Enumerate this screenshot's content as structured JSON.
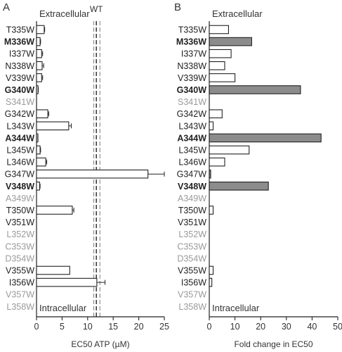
{
  "figure": {
    "mutations": [
      {
        "label": "T335W",
        "style": "normal"
      },
      {
        "label": "M336W",
        "style": "bold"
      },
      {
        "label": "I337W",
        "style": "normal"
      },
      {
        "label": "N338W",
        "style": "normal"
      },
      {
        "label": "V339W",
        "style": "normal"
      },
      {
        "label": "G340W",
        "style": "bold"
      },
      {
        "label": "S341W",
        "style": "gray"
      },
      {
        "label": "G342W",
        "style": "normal"
      },
      {
        "label": "L343W",
        "style": "normal"
      },
      {
        "label": "A344W",
        "style": "bold"
      },
      {
        "label": "L345W",
        "style": "normal"
      },
      {
        "label": "L346W",
        "style": "normal"
      },
      {
        "label": "G347W",
        "style": "normal"
      },
      {
        "label": "V348W",
        "style": "bold"
      },
      {
        "label": "A349W",
        "style": "gray"
      },
      {
        "label": "T350W",
        "style": "normal"
      },
      {
        "label": "V351W",
        "style": "normal"
      },
      {
        "label": "L352W",
        "style": "gray"
      },
      {
        "label": "C353W",
        "style": "gray"
      },
      {
        "label": "D354W",
        "style": "gray"
      },
      {
        "label": "V355W",
        "style": "normal"
      },
      {
        "label": "I356W",
        "style": "normal"
      },
      {
        "label": "V357W",
        "style": "gray"
      },
      {
        "label": "L358W",
        "style": "gray"
      }
    ],
    "colors": {
      "normal": "#222222",
      "bold": "#111111",
      "gray": "#9a9a9a",
      "bar_fill": "#ffffff",
      "bar_filled": "#8c8c8c",
      "stroke": "#222222",
      "wt_band": "#888888"
    }
  },
  "chart_data": [
    {
      "panel_letter": "A",
      "type": "bar",
      "orientation": "horizontal",
      "top_label": "Extracellular",
      "bottom_label": "Intracellular",
      "wt_label": "WT",
      "wt_value": 11.7,
      "wt_band": [
        11.2,
        12.4
      ],
      "xlabel": "EC50 ATP (µM)",
      "xlim": [
        0,
        25
      ],
      "xticks": [
        "0",
        "5",
        "10",
        "15",
        "20",
        "25"
      ],
      "values": [
        1.5,
        0.7,
        1.0,
        1.1,
        1.0,
        0.3,
        null,
        2.2,
        6.3,
        0.2,
        0.7,
        1.8,
        21.8,
        0.6,
        null,
        7.0,
        null,
        null,
        null,
        null,
        6.5,
        11.8,
        null,
        null
      ],
      "errors": [
        0.1,
        0.1,
        0.2,
        0.3,
        0.2,
        0.05,
        null,
        0.2,
        0.5,
        0.05,
        0.1,
        0.2,
        3.2,
        0.1,
        null,
        0.3,
        null,
        null,
        null,
        null,
        0,
        1.6,
        null,
        null
      ],
      "filled": [
        false,
        false,
        false,
        false,
        false,
        false,
        false,
        false,
        false,
        false,
        false,
        false,
        false,
        false,
        false,
        false,
        false,
        false,
        false,
        false,
        false,
        false,
        false,
        false
      ]
    },
    {
      "panel_letter": "B",
      "type": "bar",
      "orientation": "horizontal",
      "top_label": "Extracellular",
      "bottom_label": "Intracellular",
      "xlabel": "Fold change in EC50",
      "xlim": [
        0,
        50
      ],
      "xticks": [
        "0",
        "10",
        "20",
        "30",
        "40",
        "50"
      ],
      "values": [
        7.5,
        16.5,
        8.5,
        6.0,
        10.0,
        35.5,
        null,
        5.0,
        1.5,
        43.5,
        15.5,
        6.0,
        0.5,
        23.0,
        null,
        1.5,
        null,
        null,
        null,
        null,
        1.5,
        1.0,
        null,
        null
      ],
      "filled": [
        false,
        true,
        false,
        false,
        false,
        true,
        false,
        false,
        false,
        true,
        false,
        false,
        true,
        true,
        false,
        false,
        false,
        false,
        false,
        false,
        false,
        false,
        false,
        false
      ]
    }
  ]
}
